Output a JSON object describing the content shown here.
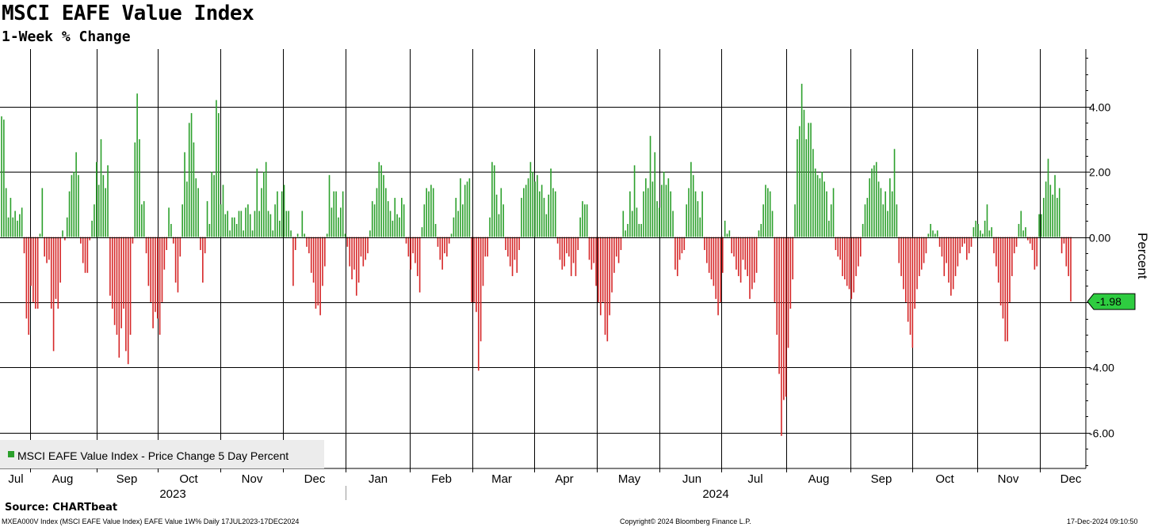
{
  "title": "MSCI EAFE Value Index",
  "subtitle": "1-Week % Change",
  "source": "Source: CHARTbeat",
  "footer": {
    "left": "MXEA000V Index (MSCI EAFE Value Index) EAFE Value 1W% Daily 17JUL2023-17DEC2024",
    "center": "Copyright© 2024 Bloomberg Finance L.P.",
    "right": "17-Dec-2024 09:10:50"
  },
  "colors": {
    "positive": "#2ca02c",
    "negative": "#d62728",
    "grid": "#000000",
    "last_label_bg": "#2ecc40"
  },
  "chart_data": {
    "type": "bar",
    "title": "MSCI EAFE Value Index",
    "subtitle": "1-Week % Change",
    "ylabel": "Percent",
    "xlabel": "",
    "ylim": [
      -7,
      5.7
    ],
    "yticks": [
      -6,
      -4,
      -2,
      0,
      2,
      4
    ],
    "ytick_labels": [
      "-6.00",
      "-4.00",
      "-2.00",
      "0.00",
      "2.00",
      "4.00"
    ],
    "grid": true,
    "legend": {
      "position": "bottom-left",
      "entries": [
        "MSCI EAFE Value Index - Price Change 5 Day Percent"
      ]
    },
    "months": [
      "Jul",
      "Aug",
      "Sep",
      "Oct",
      "Nov",
      "Dec",
      "Jan",
      "Feb",
      "Mar",
      "Apr",
      "May",
      "Jun",
      "Jul",
      "Aug",
      "Sep",
      "Oct",
      "Nov",
      "Dec"
    ],
    "years": [
      "2023",
      "2024"
    ],
    "last_value": -1.98,
    "last_value_label": "-1.98",
    "values": [
      3.7,
      3.6,
      1.5,
      0.6,
      1.2,
      0.6,
      0.8,
      0.5,
      0.7,
      0.9,
      -0.5,
      -2.5,
      -3.0,
      -1.5,
      -2.0,
      -2.2,
      -2.2,
      0.1,
      1.5,
      -0.6,
      -0.8,
      -0.7,
      -2.2,
      -3.5,
      -1.9,
      -2.2,
      -1.4,
      0.2,
      -0.1,
      0.6,
      1.4,
      1.9,
      2.0,
      2.6,
      1.9,
      -0.2,
      -0.8,
      -1.1,
      -1.1,
      -0.1,
      0.5,
      1.0,
      2.3,
      1.6,
      3.0,
      1.9,
      1.5,
      2.2,
      -1.8,
      -2.2,
      -2.7,
      -3.0,
      -3.7,
      -2.8,
      -2.2,
      -3.5,
      -3.9,
      -3.0,
      -0.2,
      2.9,
      4.4,
      3.0,
      1.0,
      1.1,
      -0.5,
      -1.5,
      -2.0,
      -2.8,
      -2.3,
      -2.5,
      -3.0,
      -2.0,
      -1.0,
      -0.4,
      0.9,
      0.4,
      -0.2,
      -1.4,
      -1.7,
      -0.6,
      1.0,
      2.6,
      1.7,
      3.5,
      3.8,
      2.9,
      1.8,
      1.5,
      -0.4,
      -1.4,
      -0.5,
      1.1,
      0.4,
      2.0,
      1.9,
      4.2,
      3.8,
      1.0,
      1.6,
      0.7,
      0.8,
      0.2,
      0.6,
      0.6,
      0.4,
      0.8,
      0.8,
      0.2,
      0.9,
      1.0,
      0.7,
      0.2,
      0.8,
      2.1,
      0.8,
      1.5,
      2.0,
      2.3,
      0.8,
      0.7,
      0.2,
      1.0,
      1.4,
      0.5,
      1.4,
      1.6,
      0.8,
      0.8,
      0.2,
      -1.5,
      -0.4,
      0.1,
      0.0,
      0.8,
      0.1,
      -0.3,
      -0.5,
      -1.1,
      -1.4,
      -2.2,
      -2.1,
      -2.4,
      -1.5,
      -0.9,
      0.1,
      1.9,
      0.9,
      1.4,
      1.4,
      0.6,
      0.9,
      1.4,
      0.1,
      -0.3,
      -0.9,
      -1.3,
      -1.0,
      -1.8,
      -1.4,
      -0.6,
      -0.9,
      -0.7,
      -0.5,
      0.2,
      1.1,
      1.0,
      1.5,
      2.3,
      2.2,
      1.9,
      1.5,
      1.1,
      0.8,
      0.5,
      1.2,
      0.7,
      0.6,
      1.2,
      1.0,
      -0.2,
      -0.6,
      -1.0,
      -0.5,
      -0.8,
      -1.2,
      -1.7,
      0.3,
      1.0,
      1.5,
      1.4,
      1.6,
      1.5,
      0.4,
      -0.3,
      -0.7,
      -1.0,
      -0.5,
      -0.6,
      -0.2,
      0.1,
      0.6,
      1.2,
      0.8,
      1.8,
      1.0,
      1.6,
      1.7,
      1.8,
      -2.0,
      -2.0,
      -2.3,
      -4.1,
      -3.2,
      -1.5,
      -0.6,
      -0.6,
      0.6,
      2.3,
      2.2,
      1.3,
      0.7,
      1.5,
      1.0,
      -0.4,
      -0.6,
      -0.9,
      -1.2,
      -0.7,
      -1.1,
      -0.4,
      1.2,
      1.5,
      1.6,
      1.8,
      2.3,
      2.0,
      1.7,
      1.9,
      1.4,
      1.6,
      1.2,
      0.7,
      1.3,
      2.1,
      1.5,
      1.4,
      -0.2,
      -0.7,
      -1.0,
      -0.9,
      -0.5,
      -0.6,
      -1.2,
      -0.8,
      -1.2,
      -0.4,
      0.6,
      1.1,
      1.0,
      1.0,
      -0.7,
      -1.0,
      -0.8,
      -1.5,
      -2.0,
      -2.4,
      -2.0,
      -3.0,
      -3.2,
      -2.4,
      -1.7,
      -1.1,
      -0.6,
      -0.8,
      -0.4,
      0.8,
      0.2,
      0.4,
      1.4,
      0.8,
      2.2,
      0.9,
      0.4,
      0.4,
      1.4,
      1.8,
      1.5,
      3.1,
      1.7,
      2.6,
      1.1,
      0.9,
      1.6,
      2.0,
      1.6,
      1.8,
      1.4,
      0.8,
      -1.0,
      -1.2,
      -0.7,
      -0.5,
      -0.4,
      1.0,
      1.5,
      2.3,
      1.9,
      1.4,
      1.1,
      0.6,
      1.4,
      -0.4,
      -0.8,
      -1.1,
      -1.3,
      -1.5,
      -1.9,
      -2.4,
      -2.0,
      -1.1,
      0.5,
      0.1,
      0.2,
      -0.5,
      -0.6,
      -1.0,
      -1.2,
      -1.4,
      -0.7,
      -1.0,
      -1.2,
      -1.9,
      -1.6,
      -1.4,
      -1.1,
      0.2,
      0.4,
      1.0,
      1.6,
      1.5,
      1.4,
      0.8,
      -2.0,
      -3.0,
      -4.2,
      -6.1,
      -5.0,
      -4.9,
      -3.4,
      -2.2,
      -1.3,
      1.0,
      3.0,
      3.4,
      4.7,
      3.9,
      3.0,
      3.5,
      3.5,
      2.7,
      2.1,
      1.9,
      1.8,
      2.0,
      1.7,
      1.4,
      0.5,
      1.0,
      1.5,
      -0.4,
      -0.6,
      -0.7,
      -1.2,
      -1.3,
      -1.5,
      -1.6,
      -1.9,
      -1.7,
      -1.2,
      -0.9,
      -0.6,
      0.4,
      1.0,
      1.2,
      1.8,
      2.1,
      2.2,
      2.3,
      1.7,
      1.5,
      1.0,
      1.4,
      0.8,
      1.8,
      1.4,
      2.7,
      1.0,
      -0.8,
      -1.2,
      -1.6,
      -2.0,
      -2.6,
      -3.0,
      -3.4,
      -2.2,
      -1.6,
      -1.2,
      -1.0,
      -0.8,
      -0.5,
      0.1,
      0.4,
      0.2,
      0.1,
      0.2,
      -0.3,
      -0.6,
      -1.2,
      -0.8,
      -1.4,
      -1.8,
      -1.6,
      -1.2,
      -0.9,
      -0.5,
      -0.3,
      -0.2,
      -0.7,
      -0.5,
      -0.3,
      0.3,
      0.5,
      0.4,
      0.2,
      0.1,
      0.5,
      1.0,
      0.2,
      0.3,
      -0.5,
      -0.9,
      -1.4,
      -2.1,
      -2.5,
      -3.2,
      -3.2,
      -2.0,
      -1.2,
      -0.5,
      -0.3,
      0.4,
      0.8,
      0.2,
      0.3,
      -0.1,
      -0.2,
      -0.4,
      -1.0,
      -0.9,
      0.7,
      0.7,
      1.2,
      1.7,
      2.4,
      1.6,
      1.3,
      1.9,
      1.2,
      1.5,
      -0.5,
      -0.2,
      -0.9,
      -1.2,
      -1.98
    ]
  }
}
